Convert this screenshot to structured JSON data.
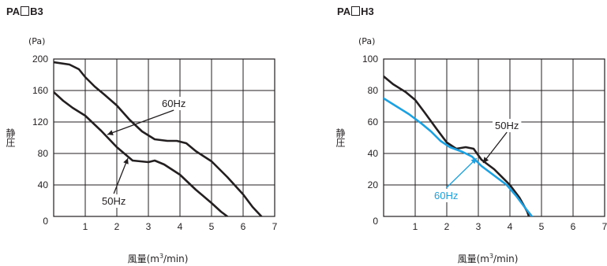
{
  "chart_data": [
    {
      "type": "line",
      "title_parts": [
        "PA",
        "B3"
      ],
      "ylabel": "静圧",
      "yunit": "(Pa)",
      "xlabel": "風量(m",
      "xlabel_sup": "3",
      "xlabel_tail": "/min)",
      "xlim": [
        0,
        7
      ],
      "ylim": [
        0,
        200
      ],
      "xticks": [
        1,
        2,
        3,
        4,
        5,
        6,
        7
      ],
      "yticks": [
        40,
        80,
        120,
        160,
        200
      ],
      "origin_label": "0",
      "grid": true,
      "series": [
        {
          "name": "60Hz",
          "color": "#231f20",
          "points": [
            [
              0,
              196
            ],
            [
              0.5,
              193
            ],
            [
              0.8,
              187
            ],
            [
              1.0,
              177
            ],
            [
              1.3,
              165
            ],
            [
              1.6,
              155
            ],
            [
              2.0,
              141
            ],
            [
              2.4,
              123
            ],
            [
              2.8,
              108
            ],
            [
              3.2,
              98
            ],
            [
              3.6,
              96
            ],
            [
              3.9,
              96
            ],
            [
              4.2,
              93
            ],
            [
              4.5,
              83
            ],
            [
              5.0,
              70
            ],
            [
              5.5,
              50
            ],
            [
              6.0,
              28
            ],
            [
              6.3,
              12
            ],
            [
              6.58,
              0
            ]
          ]
        },
        {
          "name": "50Hz",
          "color": "#231f20",
          "points": [
            [
              0,
              158
            ],
            [
              0.3,
              147
            ],
            [
              0.6,
              138
            ],
            [
              1.0,
              128
            ],
            [
              1.5,
              109
            ],
            [
              2.0,
              88
            ],
            [
              2.5,
              71
            ],
            [
              3.0,
              69
            ],
            [
              3.2,
              71
            ],
            [
              3.5,
              66
            ],
            [
              4.0,
              53
            ],
            [
              4.5,
              34
            ],
            [
              5.0,
              17
            ],
            [
              5.3,
              6
            ],
            [
              5.5,
              0
            ]
          ]
        }
      ],
      "annotations": [
        {
          "text": "60Hz",
          "series": "60Hz",
          "color": "#231f20"
        },
        {
          "text": "50Hz",
          "series": "50Hz",
          "color": "#231f20"
        }
      ]
    },
    {
      "type": "line",
      "title_parts": [
        "PA",
        "H3"
      ],
      "ylabel": "静圧",
      "yunit": "(Pa)",
      "xlabel": "風量(m",
      "xlabel_sup": "3",
      "xlabel_tail": "/min)",
      "xlim": [
        0,
        7
      ],
      "ylim": [
        0,
        100
      ],
      "xticks": [
        1,
        2,
        3,
        4,
        5,
        6,
        7
      ],
      "yticks": [
        20,
        40,
        60,
        80,
        100
      ],
      "origin_label": "0",
      "grid": true,
      "series": [
        {
          "name": "50Hz",
          "color": "#231f20",
          "points": [
            [
              0,
              89
            ],
            [
              0.3,
              84
            ],
            [
              0.7,
              79
            ],
            [
              1.0,
              74
            ],
            [
              1.3,
              66
            ],
            [
              1.7,
              55
            ],
            [
              2.0,
              47
            ],
            [
              2.3,
              43
            ],
            [
              2.6,
              44
            ],
            [
              2.85,
              43
            ],
            [
              3.1,
              36
            ],
            [
              3.5,
              30
            ],
            [
              4.0,
              20
            ],
            [
              4.3,
              12
            ],
            [
              4.55,
              3
            ],
            [
              4.6,
              0
            ]
          ]
        },
        {
          "name": "60Hz",
          "color": "#1ba1e2",
          "points": [
            [
              0,
              75
            ],
            [
              0.4,
              70
            ],
            [
              0.8,
              65
            ],
            [
              1.2,
              59
            ],
            [
              1.5,
              54
            ],
            [
              1.8,
              48
            ],
            [
              2.1,
              44
            ],
            [
              2.5,
              41
            ],
            [
              2.8,
              38
            ],
            [
              3.1,
              32
            ],
            [
              3.5,
              26
            ],
            [
              3.9,
              20
            ],
            [
              4.2,
              13
            ],
            [
              4.5,
              5
            ],
            [
              4.7,
              0
            ]
          ]
        }
      ],
      "annotations": [
        {
          "text": "50Hz",
          "series": "50Hz",
          "color": "#231f20"
        },
        {
          "text": "60Hz",
          "series": "60Hz",
          "color": "#1ba1e2"
        }
      ]
    }
  ]
}
